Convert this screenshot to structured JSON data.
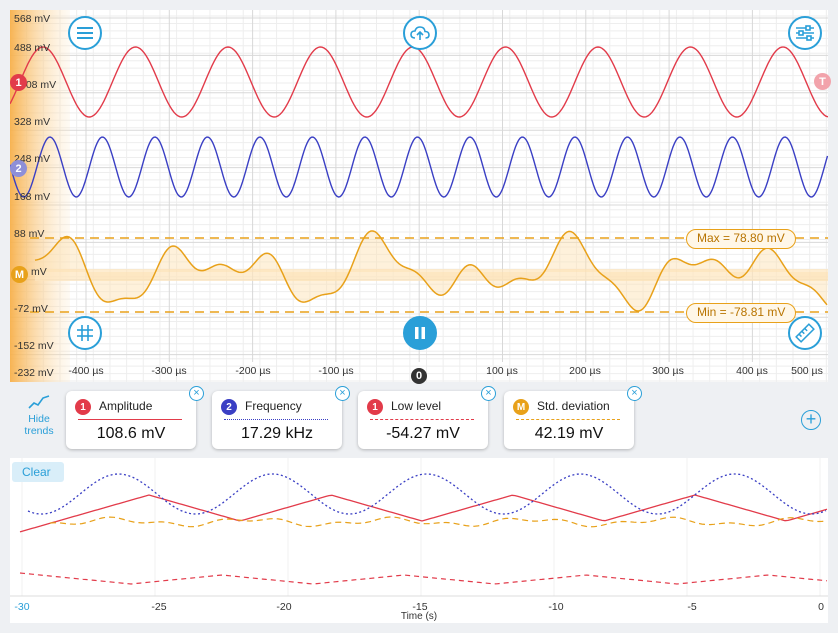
{
  "scope": {
    "y_labels": [
      "568 mV",
      "488 mV",
      "408 mV",
      "328 mV",
      "248 mV",
      "168 mV",
      "88 mV",
      "mV",
      "-72 mV",
      "-152 mV",
      "-232 mV"
    ],
    "x_labels": [
      "-400 µs",
      "-300 µs",
      "-200 µs",
      "-100 µs",
      "100 µs",
      "200 µs",
      "300 µs",
      "400 µs",
      "500 µs"
    ],
    "max_annotation": "Max = 78.80 mV",
    "min_annotation": "Min = -78.81 mV",
    "markers": {
      "ch1": "1",
      "ch2": "2",
      "math": "M",
      "trigger": "T",
      "zero": "0"
    },
    "colors": {
      "ch1": "#e23b4a",
      "ch2": "#3a3fc4",
      "math": "#e8a11a",
      "accent": "#2a9fd8"
    },
    "icons": [
      "menu-icon",
      "cloud-upload-icon",
      "settings-sliders-icon",
      "grid-icon",
      "pause-icon",
      "ruler-icon"
    ]
  },
  "measurements": {
    "hide_trends": "Hide trends",
    "cards": [
      {
        "badge": "1",
        "title": "Amplitude",
        "value": "108.6 mV",
        "color": "#e23b4a",
        "line": "solid"
      },
      {
        "badge": "2",
        "title": "Frequency",
        "value": "17.29 kHz",
        "color": "#3a3fc4",
        "line": "dotted"
      },
      {
        "badge": "1",
        "title": "Low level",
        "value": "-54.27 mV",
        "color": "#e23b4a",
        "line": "dashed"
      },
      {
        "badge": "M",
        "title": "Std. deviation",
        "value": "42.19 mV",
        "color": "#e8a11a",
        "line": "dashed"
      }
    ]
  },
  "trend": {
    "clear_label": "Clear",
    "x_ticks": [
      "-30",
      "-25",
      "-20",
      "-15",
      "-10",
      "-5",
      "0"
    ],
    "x_axis_label": "Time (s)"
  }
}
